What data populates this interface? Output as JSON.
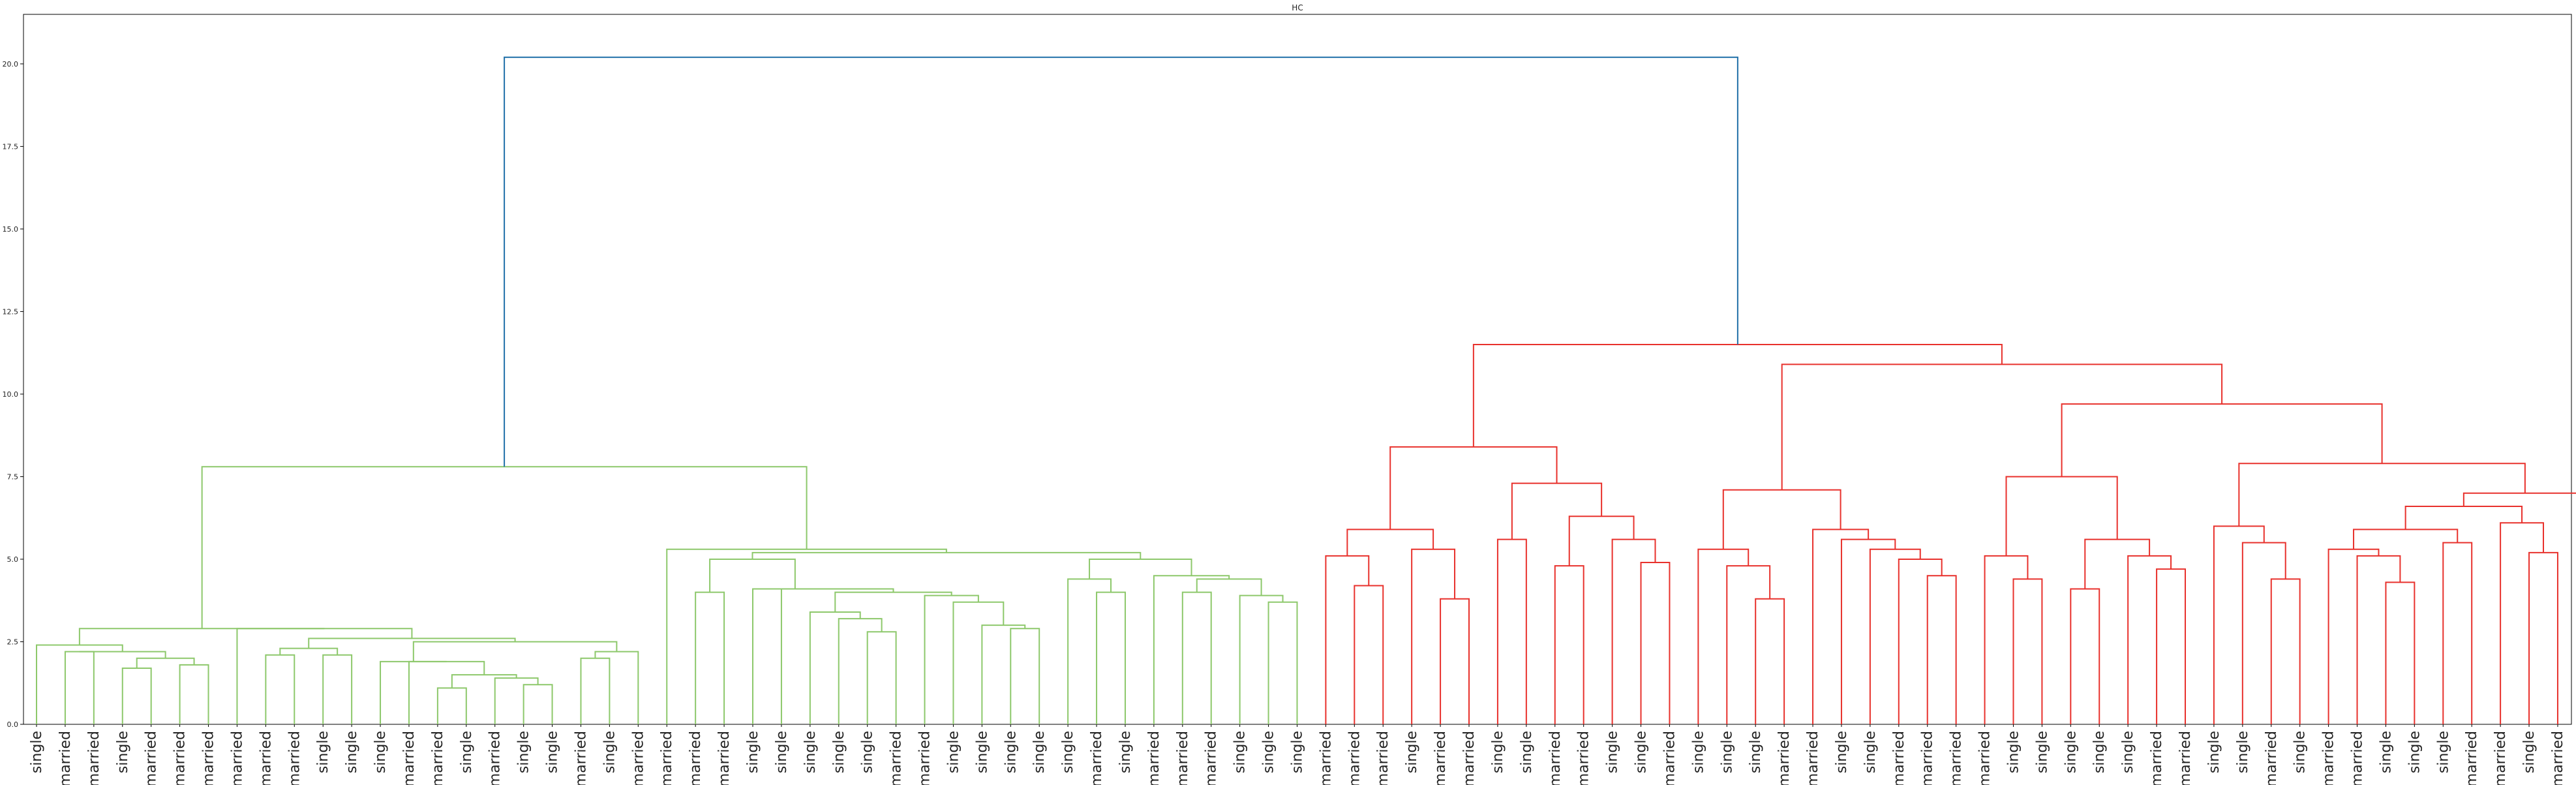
{
  "chart_data": {
    "type": "dendrogram",
    "title": "HC",
    "xlabel": "",
    "ylabel": "",
    "ylim": [
      0,
      21.5
    ],
    "yticks": [
      0.0,
      2.5,
      5.0,
      7.5,
      10.0,
      12.5,
      15.0,
      17.5,
      20.0
    ],
    "ytick_labels": [
      "0.0",
      "2.5",
      "5.0",
      "7.5",
      "10.0",
      "12.5",
      "15.0",
      "17.5",
      "20.0"
    ],
    "grid": false,
    "colors": {
      "cluster1": "#8dc86b",
      "cluster2": "#e8312c",
      "root": "#1f6fa8"
    },
    "leaves": [
      "single",
      "married",
      "married",
      "single",
      "married",
      "married",
      "married",
      "married",
      "married",
      "married",
      "single",
      "single",
      "single",
      "married",
      "married",
      "single",
      "married",
      "single",
      "single",
      "married",
      "single",
      "married",
      "married",
      "married",
      "married",
      "single",
      "single",
      "single",
      "single",
      "single",
      "married",
      "married",
      "single",
      "single",
      "single",
      "single",
      "single",
      "married",
      "single",
      "married",
      "married",
      "married",
      "single",
      "single",
      "single",
      "married",
      "married",
      "married",
      "single",
      "married",
      "married",
      "single",
      "single",
      "married",
      "married",
      "single",
      "single",
      "married",
      "single",
      "single",
      "single",
      "married",
      "married",
      "single",
      "single",
      "married",
      "married",
      "married",
      "married",
      "single",
      "single",
      "single",
      "single",
      "single",
      "married",
      "married",
      "single",
      "single",
      "married",
      "single",
      "married",
      "married",
      "single",
      "single",
      "single",
      "married",
      "married",
      "single",
      "married",
      "married",
      "married",
      "married",
      "married",
      "married",
      "single",
      "single",
      "married",
      "single",
      "single",
      "single"
    ],
    "merges": [
      {
        "left": 1,
        "right": 2,
        "height": 2.2,
        "color": "#8dc86b"
      },
      {
        "left": 3,
        "right": 4,
        "height": 1.7,
        "color": "#8dc86b"
      },
      {
        "left": 5,
        "right": 6,
        "height": 1.8,
        "color": "#8dc86b"
      },
      {
        "left": "1",
        "right": "2",
        "height": 2.0,
        "color": "#8dc86b"
      },
      {
        "left": "0",
        "right": "3",
        "height": 2.2,
        "color": "#8dc86b"
      },
      {
        "left": 0,
        "right": "4",
        "height": 2.4,
        "color": "#8dc86b"
      },
      {
        "left": 8,
        "right": 9,
        "height": 2.1,
        "color": "#8dc86b"
      },
      {
        "left": 10,
        "right": 11,
        "height": 2.1,
        "color": "#8dc86b"
      },
      {
        "left": "6",
        "right": "7",
        "height": 2.3,
        "color": "#8dc86b"
      },
      {
        "left": 14,
        "right": 15,
        "height": 1.1,
        "color": "#8dc86b"
      },
      {
        "left": 17,
        "right": 18,
        "height": 1.2,
        "color": "#8dc86b"
      },
      {
        "left": 16,
        "right": "10",
        "height": 1.4,
        "color": "#8dc86b"
      },
      {
        "left": "9",
        "right": "11",
        "height": 1.5,
        "color": "#8dc86b"
      },
      {
        "left": 13,
        "right": "12",
        "height": 1.9,
        "color": "#8dc86b"
      },
      {
        "left": 12,
        "right": "13",
        "height": 1.9,
        "color": "#8dc86b"
      },
      {
        "left": 19,
        "right": 20,
        "height": 2.0,
        "color": "#8dc86b"
      },
      {
        "left": 21,
        "right": "15",
        "height": 2.2,
        "color": "#8dc86b"
      },
      {
        "left": "14",
        "right": "16",
        "height": 2.5,
        "color": "#8dc86b"
      },
      {
        "left": "8",
        "right": "17",
        "height": 2.6,
        "color": "#8dc86b"
      },
      {
        "left": 7,
        "right": "18",
        "height": 2.9,
        "color": "#8dc86b"
      },
      {
        "left": "5",
        "right": "19",
        "height": 2.9,
        "color": "#8dc86b"
      },
      {
        "left": 23,
        "right": 24,
        "height": 4.0,
        "color": "#8dc86b"
      },
      {
        "left": 29,
        "right": 30,
        "height": 2.8,
        "color": "#8dc86b"
      },
      {
        "left": 28,
        "right": "22",
        "height": 3.2,
        "color": "#8dc86b"
      },
      {
        "left": 27,
        "right": "23",
        "height": 3.4,
        "color": "#8dc86b"
      },
      {
        "left": 34,
        "right": 35,
        "height": 2.9,
        "color": "#8dc86b"
      },
      {
        "left": 33,
        "right": "25",
        "height": 3.0,
        "color": "#8dc86b"
      },
      {
        "left": 32,
        "right": "26",
        "height": 3.7,
        "color": "#8dc86b"
      },
      {
        "left": 31,
        "right": "27",
        "height": 3.9,
        "color": "#8dc86b"
      },
      {
        "left": "24",
        "right": "28",
        "height": 4.0,
        "color": "#8dc86b"
      },
      {
        "left": 26,
        "right": "29",
        "height": 4.1,
        "color": "#8dc86b"
      },
      {
        "left": 25,
        "right": "30",
        "height": 4.1,
        "color": "#8dc86b"
      },
      {
        "left": "21",
        "right": "31",
        "height": 5.0,
        "color": "#8dc86b"
      },
      {
        "left": 37,
        "right": 38,
        "height": 4.0,
        "color": "#8dc86b"
      },
      {
        "left": 36,
        "right": "33",
        "height": 4.4,
        "color": "#8dc86b"
      },
      {
        "left": 40,
        "right": 41,
        "height": 4.0,
        "color": "#8dc86b"
      },
      {
        "left": 43,
        "right": 44,
        "height": 3.7,
        "color": "#8dc86b"
      },
      {
        "left": 42,
        "right": "36",
        "height": 3.9,
        "color": "#8dc86b"
      },
      {
        "left": "35",
        "right": "37",
        "height": 4.4,
        "color": "#8dc86b"
      },
      {
        "left": 39,
        "right": "38",
        "height": 4.5,
        "color": "#8dc86b"
      },
      {
        "left": "34",
        "right": "39",
        "height": 5.0,
        "color": "#8dc86b"
      },
      {
        "left": "32",
        "right": "40",
        "height": 5.2,
        "color": "#8dc86b"
      },
      {
        "left": 22,
        "right": "41",
        "height": 5.3,
        "color": "#8dc86b"
      },
      {
        "left": "20",
        "right": "42",
        "height": 7.8,
        "color": "#8dc86b"
      },
      {
        "left": 46,
        "right": 47,
        "height": 4.2,
        "color": "#e8312c"
      },
      {
        "left": 45,
        "right": "44",
        "height": 5.1,
        "color": "#e8312c"
      },
      {
        "left": 49,
        "right": 50,
        "height": 3.8,
        "color": "#e8312c"
      },
      {
        "left": 48,
        "right": "46",
        "height": 5.3,
        "color": "#e8312c"
      },
      {
        "left": "45",
        "right": "47",
        "height": 5.9,
        "color": "#e8312c"
      },
      {
        "left": 51,
        "right": 52,
        "height": 5.6,
        "color": "#e8312c"
      },
      {
        "left": 53,
        "right": 54,
        "height": 4.8,
        "color": "#e8312c"
      },
      {
        "left": 56,
        "right": 57,
        "height": 4.9,
        "color": "#e8312c"
      },
      {
        "left": 55,
        "right": "51",
        "height": 5.6,
        "color": "#e8312c"
      },
      {
        "left": "50",
        "right": "52",
        "height": 6.3,
        "color": "#e8312c"
      },
      {
        "left": "49",
        "right": "53",
        "height": 7.3,
        "color": "#e8312c"
      },
      {
        "left": "48",
        "right": "54",
        "height": 8.4,
        "color": "#e8312c"
      },
      {
        "left": 60,
        "right": 61,
        "height": 3.8,
        "color": "#e8312c"
      },
      {
        "left": 59,
        "right": "56",
        "height": 4.8,
        "color": "#e8312c"
      },
      {
        "left": 58,
        "right": "57",
        "height": 5.3,
        "color": "#e8312c"
      },
      {
        "left": 66,
        "right": 67,
        "height": 4.5,
        "color": "#e8312c"
      },
      {
        "left": 65,
        "right": "59",
        "height": 5.0,
        "color": "#e8312c"
      },
      {
        "left": 64,
        "right": "60",
        "height": 5.3,
        "color": "#e8312c"
      },
      {
        "left": 63,
        "right": "61",
        "height": 5.6,
        "color": "#e8312c"
      },
      {
        "left": 62,
        "right": "62",
        "height": 5.9,
        "color": "#e8312c"
      },
      {
        "left": "58",
        "right": "63",
        "height": 7.1,
        "color": "#e8312c"
      },
      {
        "left": 69,
        "right": 70,
        "height": 4.4,
        "color": "#e8312c"
      },
      {
        "left": 68,
        "right": "65",
        "height": 5.1,
        "color": "#e8312c"
      },
      {
        "left": 71,
        "right": 72,
        "height": 4.1,
        "color": "#e8312c"
      },
      {
        "left": 74,
        "right": 75,
        "height": 4.7,
        "color": "#e8312c"
      },
      {
        "left": 73,
        "right": "68",
        "height": 5.1,
        "color": "#e8312c"
      },
      {
        "left": "67",
        "right": "69",
        "height": 5.6,
        "color": "#e8312c"
      },
      {
        "left": "66",
        "right": "70",
        "height": 7.5,
        "color": "#e8312c"
      },
      {
        "left": 78,
        "right": 79,
        "height": 4.4,
        "color": "#e8312c"
      },
      {
        "left": 77,
        "right": "72",
        "height": 5.5,
        "color": "#e8312c"
      },
      {
        "left": 76,
        "right": "73",
        "height": 6.0,
        "color": "#e8312c"
      },
      {
        "left": 82,
        "right": 83,
        "height": 4.3,
        "color": "#e8312c"
      },
      {
        "left": 81,
        "right": "75",
        "height": 5.1,
        "color": "#e8312c"
      },
      {
        "left": 80,
        "right": "76",
        "height": 5.3,
        "color": "#e8312c"
      },
      {
        "left": 84,
        "right": 85,
        "height": 5.5,
        "color": "#e8312c"
      },
      {
        "left": "77",
        "right": "78",
        "height": 5.9,
        "color": "#e8312c"
      },
      {
        "left": 87,
        "right": 88,
        "height": 5.2,
        "color": "#e8312c"
      },
      {
        "left": 86,
        "right": "80",
        "height": 6.1,
        "color": "#e8312c"
      },
      {
        "left": "79",
        "right": "81",
        "height": 6.6,
        "color": "#e8312c"
      },
      {
        "left": 89,
        "right": "82",
        "height": 7.0,
        "color": "#e8312c"
      },
      {
        "left": "74",
        "right": "83",
        "height": 7.9,
        "color": "#e8312c"
      },
      {
        "left": "71",
        "right": "84",
        "height": 9.7,
        "color": "#e8312c"
      },
      {
        "left": "64",
        "right": "85",
        "height": 10.9,
        "color": "#e8312c"
      },
      {
        "left": "55",
        "right": "86",
        "height": 11.5,
        "color": "#e8312c"
      },
      {
        "left": "43",
        "right": "87",
        "height": 20.2,
        "color": "#1f6fa8"
      }
    ]
  }
}
